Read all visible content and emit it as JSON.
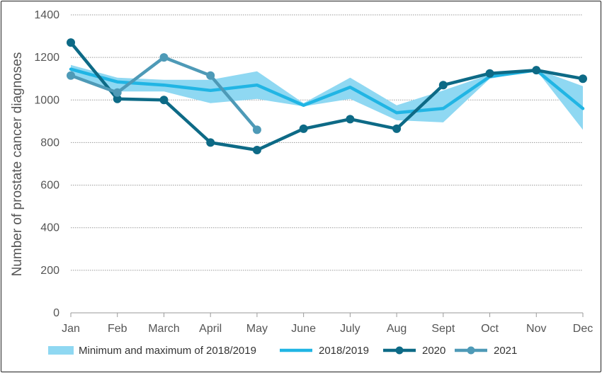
{
  "chart_data": {
    "type": "line",
    "title": "",
    "xlabel": "",
    "ylabel": "Number of prostate cancer diagnoses",
    "categories": [
      "Jan",
      "Feb",
      "March",
      "April",
      "May",
      "June",
      "July",
      "Aug",
      "Sept",
      "Oct",
      "Nov",
      "Dec"
    ],
    "ylim": [
      0,
      1400
    ],
    "yticks": [
      0,
      200,
      400,
      600,
      800,
      1000,
      1200,
      1400
    ],
    "grid": "horizontal dotted",
    "legend_position": "bottom",
    "band": {
      "name": "Minimum and maximum of 2018/2019",
      "color": "#8fd8f2",
      "min": [
        1120,
        1040,
        1040,
        985,
        1005,
        970,
        1005,
        905,
        895,
        1100,
        1140,
        860
      ],
      "max": [
        1165,
        1105,
        1095,
        1095,
        1135,
        985,
        1105,
        975,
        1045,
        1120,
        1145,
        1065
      ]
    },
    "series": [
      {
        "name": "2018/2019",
        "color": "#21b5e4",
        "markers": false,
        "values": [
          1145,
          1085,
          1070,
          1045,
          1070,
          975,
          1060,
          940,
          960,
          1110,
          1140,
          960
        ]
      },
      {
        "name": "2020",
        "color": "#0d6a86",
        "markers": true,
        "values": [
          1270,
          1005,
          1000,
          800,
          765,
          865,
          910,
          865,
          1070,
          1125,
          1140,
          1100
        ]
      },
      {
        "name": "2021",
        "color": "#4e9ab7",
        "markers": true,
        "values": [
          1115,
          1035,
          1200,
          1115,
          860,
          null,
          null,
          null,
          null,
          null,
          null,
          null
        ]
      }
    ]
  }
}
